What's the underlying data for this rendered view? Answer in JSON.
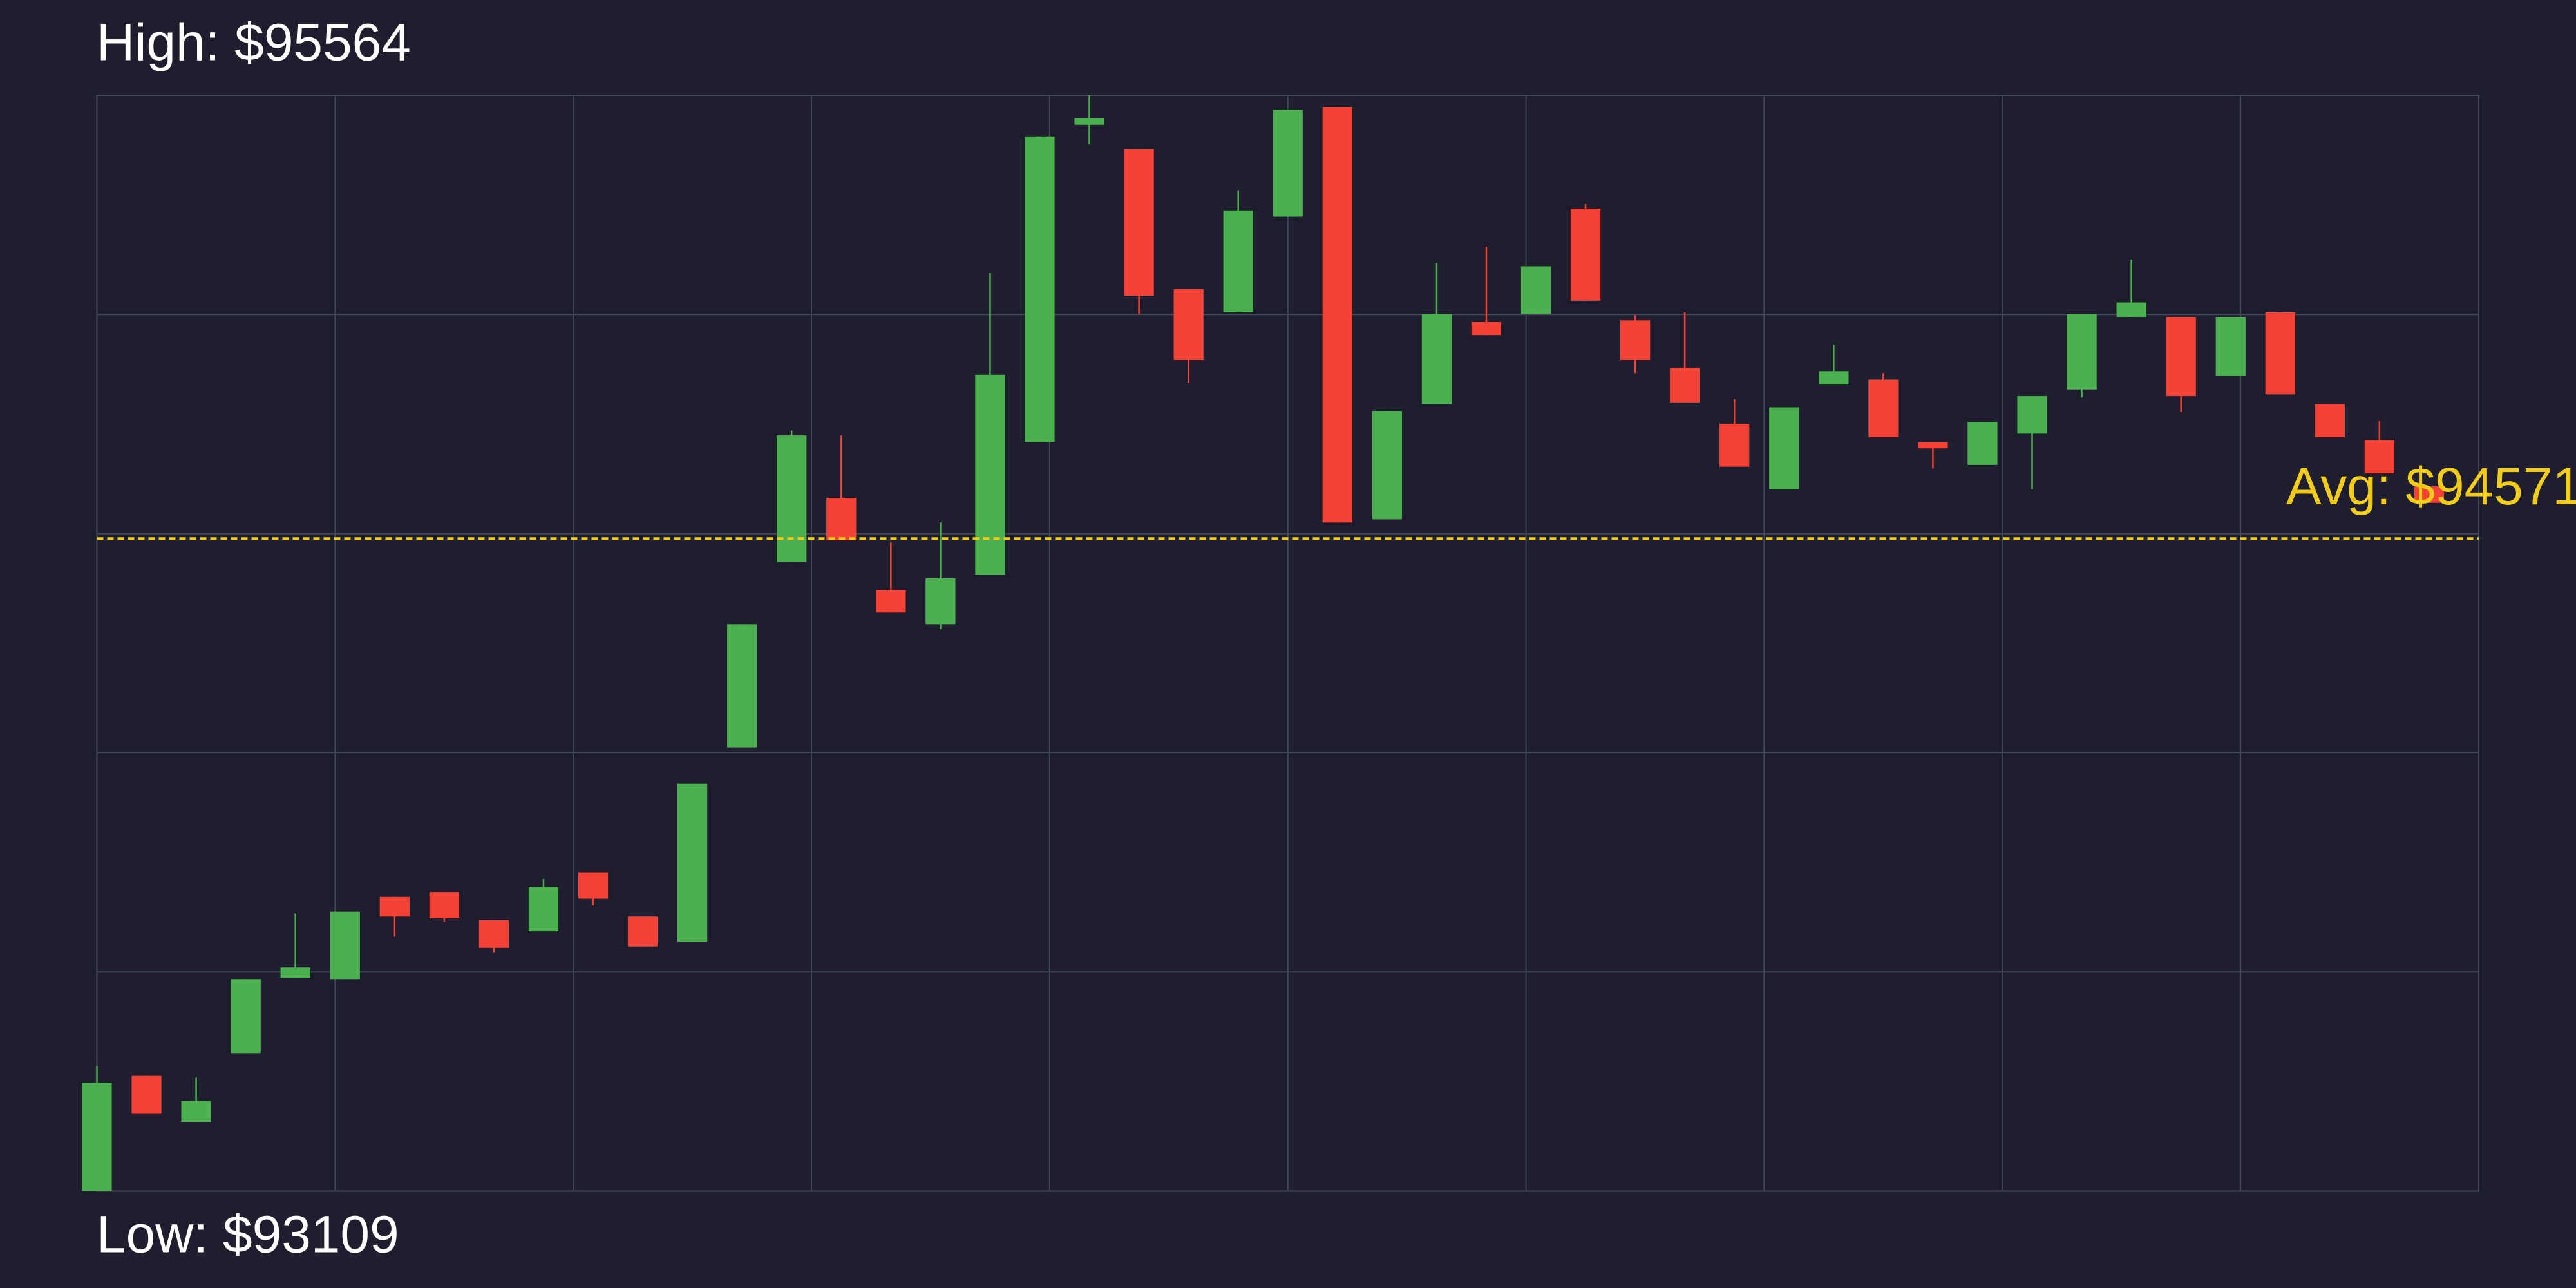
{
  "chart_data": {
    "type": "candlestick",
    "high_label": "High: $95564",
    "low_label": "Low: $93109",
    "average_label": "Avg: $94571",
    "average": 94571,
    "average_color": "#f2cc1a",
    "ylim": [
      93109,
      95564
    ],
    "grid": true,
    "up_color": "#4caf50",
    "down_color": "#f44336",
    "open": [
      93109,
      93367,
      93264,
      93418,
      93587,
      93584,
      93768,
      93779,
      93716,
      93691,
      93823,
      93724,
      93668,
      94103,
      94519,
      94662,
      94456,
      94379,
      94489,
      94787,
      95498,
      95443,
      95130,
      95078,
      95292,
      95538,
      94614,
      94872,
      95056,
      95074,
      95310,
      95060,
      94953,
      94828,
      94681,
      94916,
      94927,
      94787,
      94736,
      94806,
      94905,
      95067,
      95067,
      94935,
      95078,
      94872,
      94791,
      94688
    ],
    "high": [
      93389,
      93367,
      93363,
      93584,
      93731,
      93735,
      93768,
      93779,
      93716,
      93808,
      93823,
      93724,
      94022,
      94379,
      94813,
      94802,
      94563,
      94607,
      95166,
      95472,
      95564,
      95443,
      95130,
      95351,
      95531,
      95538,
      94857,
      95189,
      95225,
      95181,
      95321,
      95071,
      95078,
      94883,
      94865,
      95005,
      94942,
      94787,
      94832,
      94890,
      95074,
      95196,
      95067,
      95067,
      95078,
      94872,
      94835,
      94688
    ],
    "low": [
      93109,
      93282,
      93264,
      93418,
      93587,
      93584,
      93679,
      93713,
      93643,
      93691,
      93749,
      93657,
      93668,
      94103,
      94519,
      94567,
      94405,
      94368,
      94489,
      94787,
      95454,
      95074,
      94920,
      95078,
      95292,
      94607,
      94614,
      94872,
      95027,
      95074,
      95104,
      94942,
      94876,
      94732,
      94681,
      94916,
      94798,
      94728,
      94736,
      94681,
      94887,
      95067,
      94854,
      94935,
      94894,
      94798,
      94717,
      94651
    ],
    "close": [
      93352,
      93282,
      93311,
      93584,
      93610,
      93735,
      93724,
      93720,
      93654,
      93790,
      93764,
      93657,
      94022,
      94379,
      94802,
      94567,
      94405,
      94482,
      94938,
      95472,
      95512,
      95115,
      94971,
      95306,
      95531,
      94607,
      94857,
      95074,
      95027,
      95181,
      95104,
      94971,
      94876,
      94732,
      94865,
      94946,
      94798,
      94773,
      94832,
      94890,
      95074,
      95100,
      94890,
      95067,
      94894,
      94798,
      94717,
      94651
    ]
  }
}
